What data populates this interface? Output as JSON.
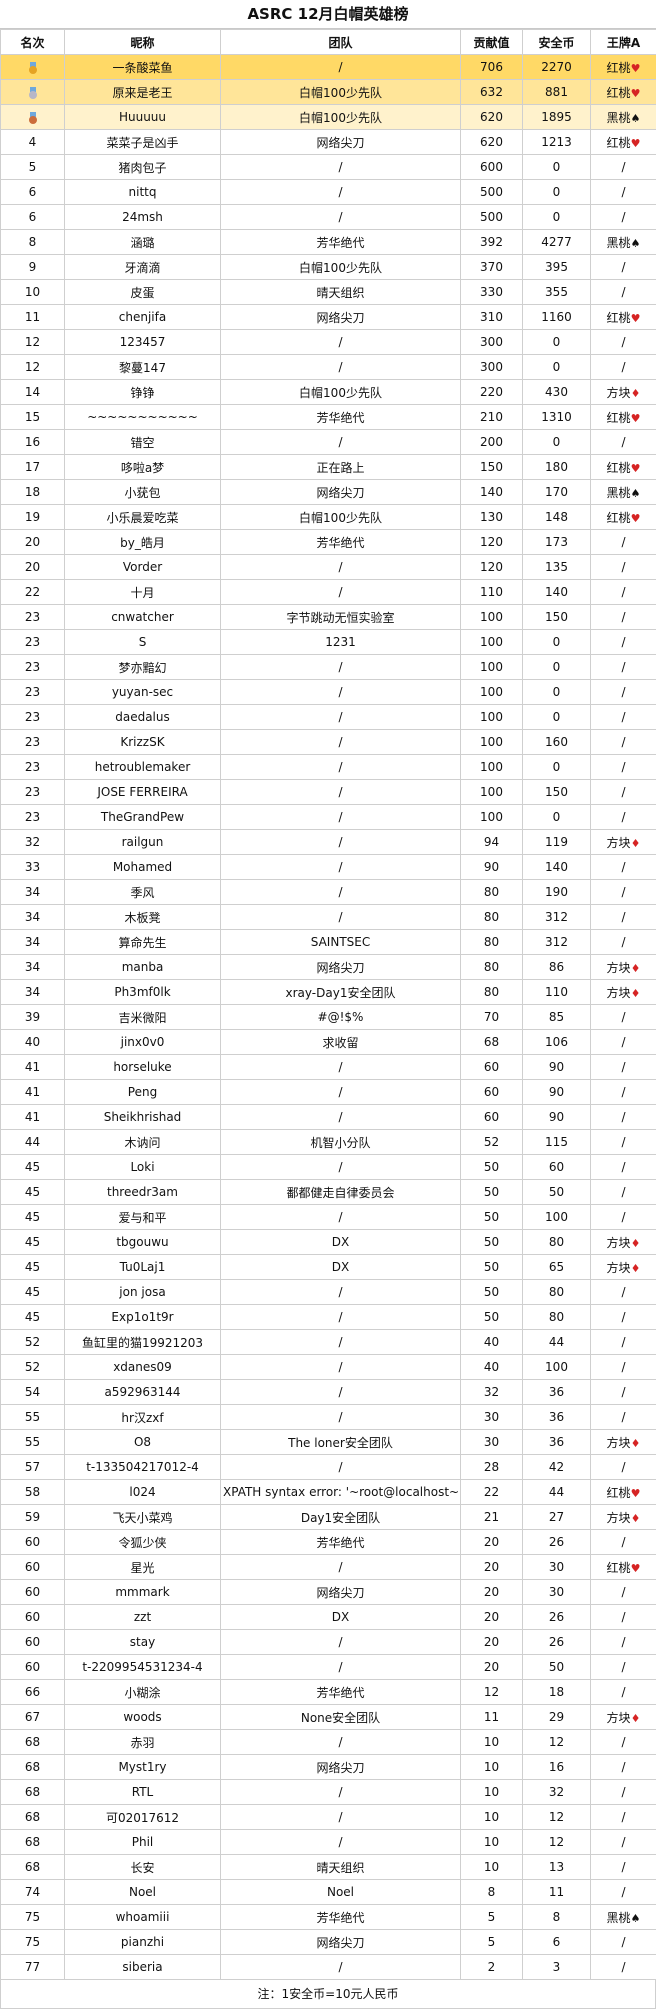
{
  "title": "ASRC 12月白帽英雄榜",
  "headers": [
    "名次",
    "昵称",
    "团队",
    "贡献值",
    "安全币",
    "王牌A"
  ],
  "note": "注：1安全币=10元人民币",
  "rows": [
    {
      "rank": "",
      "medal": "gold",
      "name": "一条酸菜鱼",
      "team": "/",
      "contrib": "706",
      "coins": "2270",
      "ace": "红桃",
      "suit": "heart",
      "highlight": "first"
    },
    {
      "rank": "",
      "medal": "silver",
      "name": "原来是老王",
      "team": "白帽100少先队",
      "contrib": "632",
      "coins": "881",
      "ace": "红桃",
      "suit": "heart",
      "highlight": "second"
    },
    {
      "rank": "",
      "medal": "bronze",
      "name": "Huuuuu",
      "team": "白帽100少先队",
      "contrib": "620",
      "coins": "1895",
      "ace": "黑桃",
      "suit": "spade",
      "highlight": "third"
    },
    {
      "rank": "4",
      "name": "菜菜子是凶手",
      "team": "网络尖刀",
      "contrib": "620",
      "coins": "1213",
      "ace": "红桃",
      "suit": "heart"
    },
    {
      "rank": "5",
      "name": "猪肉包子",
      "team": "/",
      "contrib": "600",
      "coins": "0",
      "ace": "/"
    },
    {
      "rank": "6",
      "name": "nittq",
      "team": "/",
      "contrib": "500",
      "coins": "0",
      "ace": "/"
    },
    {
      "rank": "6",
      "name": "24msh",
      "team": "/",
      "contrib": "500",
      "coins": "0",
      "ace": "/"
    },
    {
      "rank": "8",
      "name": "涵璐",
      "team": "芳华绝代",
      "contrib": "392",
      "coins": "4277",
      "ace": "黑桃",
      "suit": "spade"
    },
    {
      "rank": "9",
      "name": "牙滴滴",
      "team": "白帽100少先队",
      "contrib": "370",
      "coins": "395",
      "ace": "/"
    },
    {
      "rank": "10",
      "name": "皮蛋",
      "team": "晴天组织",
      "contrib": "330",
      "coins": "355",
      "ace": "/"
    },
    {
      "rank": "11",
      "name": "chenjifa",
      "team": "网络尖刀",
      "contrib": "310",
      "coins": "1160",
      "ace": "红桃",
      "suit": "heart"
    },
    {
      "rank": "12",
      "name": "123457",
      "team": "/",
      "contrib": "300",
      "coins": "0",
      "ace": "/"
    },
    {
      "rank": "12",
      "name": "黎蔓147",
      "team": "/",
      "contrib": "300",
      "coins": "0",
      "ace": "/"
    },
    {
      "rank": "14",
      "name": "铮铮",
      "team": "白帽100少先队",
      "contrib": "220",
      "coins": "430",
      "ace": "方块",
      "suit": "diamond"
    },
    {
      "rank": "15",
      "name": "~~~~~~~~~~~",
      "team": "芳华绝代",
      "contrib": "210",
      "coins": "1310",
      "ace": "红桃",
      "suit": "heart"
    },
    {
      "rank": "16",
      "name": "错空",
      "team": "/",
      "contrib": "200",
      "coins": "0",
      "ace": "/"
    },
    {
      "rank": "17",
      "name": "哆啦a梦",
      "team": "正在路上",
      "contrib": "150",
      "coins": "180",
      "ace": "红桃",
      "suit": "heart"
    },
    {
      "rank": "18",
      "name": "小莸包",
      "team": "网络尖刀",
      "contrib": "140",
      "coins": "170",
      "ace": "黑桃",
      "suit": "spade"
    },
    {
      "rank": "19",
      "name": "小乐晨爱吃菜",
      "team": "白帽100少先队",
      "contrib": "130",
      "coins": "148",
      "ace": "红桃",
      "suit": "heart"
    },
    {
      "rank": "20",
      "name": "by_皓月",
      "team": "芳华绝代",
      "contrib": "120",
      "coins": "173",
      "ace": "/"
    },
    {
      "rank": "20",
      "name": "Vorder",
      "team": "/",
      "contrib": "120",
      "coins": "135",
      "ace": "/"
    },
    {
      "rank": "22",
      "name": "十月",
      "team": "/",
      "contrib": "110",
      "coins": "140",
      "ace": "/"
    },
    {
      "rank": "23",
      "name": "cnwatcher",
      "team": "字节跳动无恒实验室",
      "contrib": "100",
      "coins": "150",
      "ace": "/"
    },
    {
      "rank": "23",
      "name": "S",
      "team": "1231",
      "contrib": "100",
      "coins": "0",
      "ace": "/"
    },
    {
      "rank": "23",
      "name": "梦亦黯幻",
      "team": "/",
      "contrib": "100",
      "coins": "0",
      "ace": "/"
    },
    {
      "rank": "23",
      "name": "yuyan-sec",
      "team": "/",
      "contrib": "100",
      "coins": "0",
      "ace": "/"
    },
    {
      "rank": "23",
      "name": "daedalus",
      "team": "/",
      "contrib": "100",
      "coins": "0",
      "ace": "/"
    },
    {
      "rank": "23",
      "name": "KrizzSK",
      "team": "/",
      "contrib": "100",
      "coins": "160",
      "ace": "/"
    },
    {
      "rank": "23",
      "name": "hetroublemaker",
      "team": "/",
      "contrib": "100",
      "coins": "0",
      "ace": "/"
    },
    {
      "rank": "23",
      "name": "JOSE FERREIRA",
      "team": "/",
      "contrib": "100",
      "coins": "150",
      "ace": "/"
    },
    {
      "rank": "23",
      "name": "TheGrandPew",
      "team": "/",
      "contrib": "100",
      "coins": "0",
      "ace": "/"
    },
    {
      "rank": "32",
      "name": "railgun",
      "team": "/",
      "contrib": "94",
      "coins": "119",
      "ace": "方块",
      "suit": "diamond"
    },
    {
      "rank": "33",
      "name": "Mohamed",
      "team": "/",
      "contrib": "90",
      "coins": "140",
      "ace": "/"
    },
    {
      "rank": "34",
      "name": "季风",
      "team": "/",
      "contrib": "80",
      "coins": "190",
      "ace": "/"
    },
    {
      "rank": "34",
      "name": "木板凳",
      "team": "/",
      "contrib": "80",
      "coins": "312",
      "ace": "/"
    },
    {
      "rank": "34",
      "name": "算命先生",
      "team": "SAINTSEC",
      "contrib": "80",
      "coins": "312",
      "ace": "/"
    },
    {
      "rank": "34",
      "name": "manba",
      "team": "网络尖刀",
      "contrib": "80",
      "coins": "86",
      "ace": "方块",
      "suit": "diamond"
    },
    {
      "rank": "34",
      "name": "Ph3mf0lk",
      "team": "xray-Day1安全团队",
      "contrib": "80",
      "coins": "110",
      "ace": "方块",
      "suit": "diamond"
    },
    {
      "rank": "39",
      "name": "吉米微阳",
      "team": "#@!$%",
      "contrib": "70",
      "coins": "85",
      "ace": "/"
    },
    {
      "rank": "40",
      "name": "jinx0v0",
      "team": "求收留",
      "contrib": "68",
      "coins": "106",
      "ace": "/"
    },
    {
      "rank": "41",
      "name": "horseluke",
      "team": "/",
      "contrib": "60",
      "coins": "90",
      "ace": "/"
    },
    {
      "rank": "41",
      "name": "Peng",
      "team": "/",
      "contrib": "60",
      "coins": "90",
      "ace": "/"
    },
    {
      "rank": "41",
      "name": "Sheikhrishad",
      "team": "/",
      "contrib": "60",
      "coins": "90",
      "ace": "/"
    },
    {
      "rank": "44",
      "name": "木讷问",
      "team": "机智小分队",
      "contrib": "52",
      "coins": "115",
      "ace": "/"
    },
    {
      "rank": "45",
      "name": "Loki",
      "team": "/",
      "contrib": "50",
      "coins": "60",
      "ace": "/"
    },
    {
      "rank": "45",
      "name": "threedr3am",
      "team": "鄱都健走自律委员会",
      "contrib": "50",
      "coins": "50",
      "ace": "/"
    },
    {
      "rank": "45",
      "name": "爱与和平",
      "team": "/",
      "contrib": "50",
      "coins": "100",
      "ace": "/"
    },
    {
      "rank": "45",
      "name": "tbgouwu",
      "team": "DX",
      "contrib": "50",
      "coins": "80",
      "ace": "方块",
      "suit": "diamond"
    },
    {
      "rank": "45",
      "name": "Tu0Laj1",
      "team": "DX",
      "contrib": "50",
      "coins": "65",
      "ace": "方块",
      "suit": "diamond"
    },
    {
      "rank": "45",
      "name": "jon josa",
      "team": "/",
      "contrib": "50",
      "coins": "80",
      "ace": "/"
    },
    {
      "rank": "45",
      "name": "Exp1o1t9r",
      "team": "/",
      "contrib": "50",
      "coins": "80",
      "ace": "/"
    },
    {
      "rank": "52",
      "name": "鱼缸里的猫19921203",
      "team": "/",
      "contrib": "40",
      "coins": "44",
      "ace": "/"
    },
    {
      "rank": "52",
      "name": "xdanes09",
      "team": "/",
      "contrib": "40",
      "coins": "100",
      "ace": "/"
    },
    {
      "rank": "54",
      "name": "a592963144",
      "team": "/",
      "contrib": "32",
      "coins": "36",
      "ace": "/"
    },
    {
      "rank": "55",
      "name": "hr汉zxf",
      "team": "/",
      "contrib": "30",
      "coins": "36",
      "ace": "/"
    },
    {
      "rank": "55",
      "name": "O8",
      "team": "The loner安全团队",
      "contrib": "30",
      "coins": "36",
      "ace": "方块",
      "suit": "diamond"
    },
    {
      "rank": "57",
      "name": "t-133504217012-4",
      "team": "/",
      "contrib": "28",
      "coins": "42",
      "ace": "/"
    },
    {
      "rank": "58",
      "name": "l024",
      "team": "XPATH syntax error: '~root@localhost~'",
      "contrib": "22",
      "coins": "44",
      "ace": "红桃",
      "suit": "heart"
    },
    {
      "rank": "59",
      "name": "飞天小菜鸡",
      "team": "Day1安全团队",
      "contrib": "21",
      "coins": "27",
      "ace": "方块",
      "suit": "diamond"
    },
    {
      "rank": "60",
      "name": "令狐少侠",
      "team": "芳华绝代",
      "contrib": "20",
      "coins": "26",
      "ace": "/"
    },
    {
      "rank": "60",
      "name": "星光",
      "team": "/",
      "contrib": "20",
      "coins": "30",
      "ace": "红桃",
      "suit": "heart"
    },
    {
      "rank": "60",
      "name": "mmmark",
      "team": "网络尖刀",
      "contrib": "20",
      "coins": "30",
      "ace": "/"
    },
    {
      "rank": "60",
      "name": "zzt",
      "team": "DX",
      "contrib": "20",
      "coins": "26",
      "ace": "/"
    },
    {
      "rank": "60",
      "name": "stay",
      "team": "/",
      "contrib": "20",
      "coins": "26",
      "ace": "/"
    },
    {
      "rank": "60",
      "name": "t-2209954531234-4",
      "team": "/",
      "contrib": "20",
      "coins": "50",
      "ace": "/"
    },
    {
      "rank": "66",
      "name": "小糊涂",
      "team": "芳华绝代",
      "contrib": "12",
      "coins": "18",
      "ace": "/"
    },
    {
      "rank": "67",
      "name": "woods",
      "team": "None安全团队",
      "contrib": "11",
      "coins": "29",
      "ace": "方块",
      "suit": "diamond"
    },
    {
      "rank": "68",
      "name": "赤羽",
      "team": "/",
      "contrib": "10",
      "coins": "12",
      "ace": "/"
    },
    {
      "rank": "68",
      "name": "Myst1ry",
      "team": "网络尖刀",
      "contrib": "10",
      "coins": "16",
      "ace": "/"
    },
    {
      "rank": "68",
      "name": "RTL",
      "team": "/",
      "contrib": "10",
      "coins": "32",
      "ace": "/"
    },
    {
      "rank": "68",
      "name": "可02017612",
      "team": "/",
      "contrib": "10",
      "coins": "12",
      "ace": "/"
    },
    {
      "rank": "68",
      "name": "Phil",
      "team": "/",
      "contrib": "10",
      "coins": "12",
      "ace": "/"
    },
    {
      "rank": "68",
      "name": "长安",
      "team": "晴天组织",
      "contrib": "10",
      "coins": "13",
      "ace": "/"
    },
    {
      "rank": "74",
      "name": "Noel",
      "team": "Noel",
      "contrib": "8",
      "coins": "11",
      "ace": "/"
    },
    {
      "rank": "75",
      "name": "whoamiii",
      "team": "芳华绝代",
      "contrib": "5",
      "coins": "8",
      "ace": "黑桃",
      "suit": "spade"
    },
    {
      "rank": "75",
      "name": "pianzhi",
      "team": "网络尖刀",
      "contrib": "5",
      "coins": "6",
      "ace": "/"
    },
    {
      "rank": "77",
      "name": "siberia",
      "team": "/",
      "contrib": "2",
      "coins": "3",
      "ace": "/"
    }
  ]
}
